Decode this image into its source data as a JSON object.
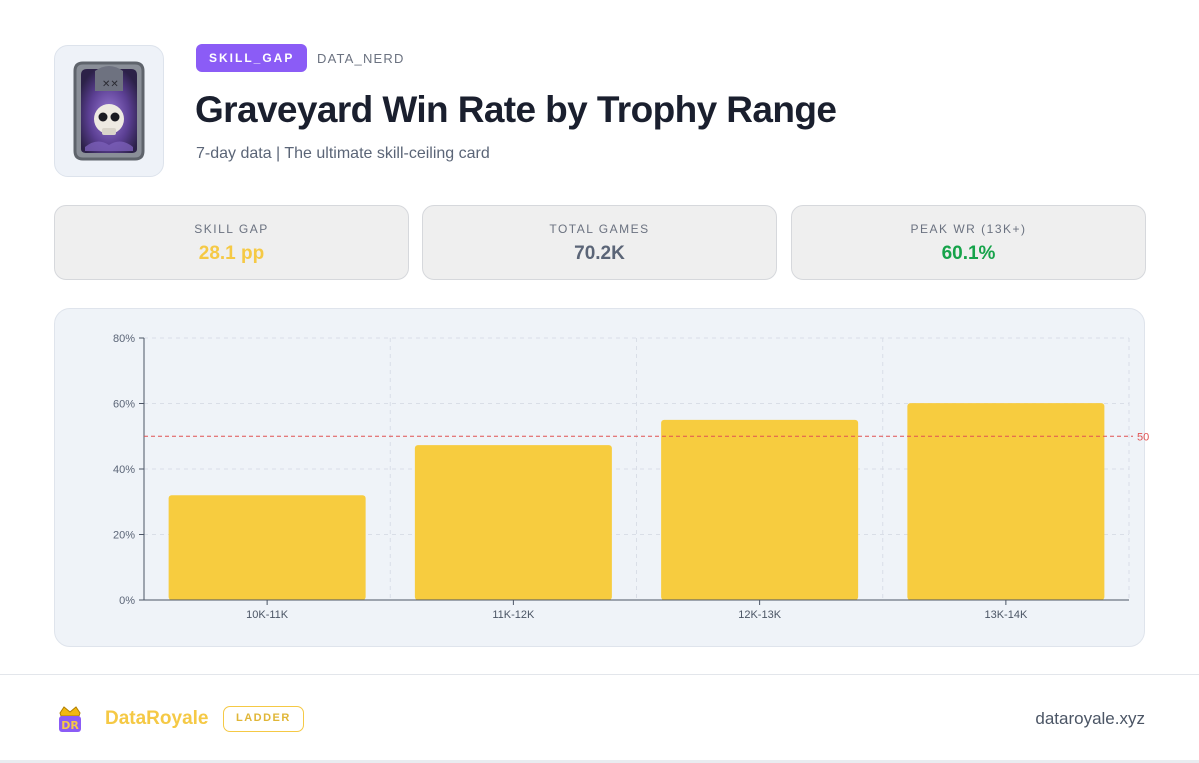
{
  "header": {
    "badge": "SKILL_GAP",
    "author": "DATA_NERD",
    "title": "Graveyard Win Rate by Trophy Range",
    "subtitle": "7-day data | The ultimate skill-ceiling card"
  },
  "stats": [
    {
      "label": "SKILL GAP",
      "value": "28.1 pp",
      "color": "#f5c945"
    },
    {
      "label": "TOTAL GAMES",
      "value": "70.2K",
      "color": "#5b6577"
    },
    {
      "label": "PEAK WR (13K+)",
      "value": "60.1%",
      "color": "#16a34a"
    }
  ],
  "chart_data": {
    "type": "bar",
    "categories": [
      "10K-11K",
      "11K-12K",
      "12K-13K",
      "13K-14K"
    ],
    "values": [
      32,
      47.3,
      55,
      60.1
    ],
    "ylim": [
      0,
      80
    ],
    "yticks": [
      0,
      20,
      40,
      60,
      80
    ],
    "ytick_labels": [
      "0%",
      "20%",
      "40%",
      "60%",
      "80%"
    ],
    "reference_line": {
      "value": 50,
      "label": "50",
      "color": "#e05252"
    },
    "bar_color": "#f7cc3f",
    "grid": true,
    "xlabel": "",
    "ylabel": ""
  },
  "footer": {
    "logo_text": "DR",
    "brand": "DataRoyale",
    "tag": "LADDER",
    "site": "dataroyale.xyz"
  }
}
